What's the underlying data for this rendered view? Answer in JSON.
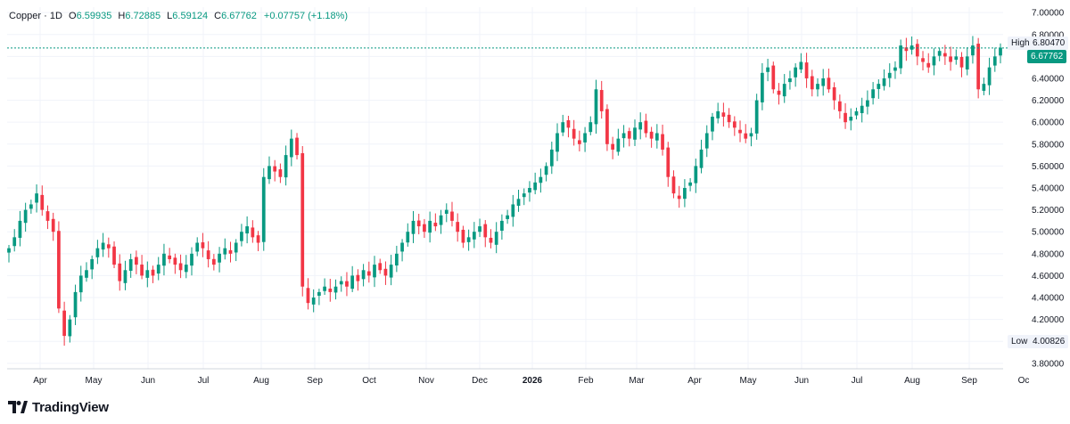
{
  "header": {
    "symbol": "Copper",
    "interval": "1D",
    "open_label": "O",
    "open": "6.59935",
    "high_label": "H",
    "high": "6.72885",
    "low_label": "L",
    "low": "6.59124",
    "close_label": "C",
    "close": "6.67762",
    "change": "+0.07757 (+1.18%)"
  },
  "markers": {
    "high_label": "High",
    "high_value": "6.80470",
    "low_label": "Low",
    "low_value": "4.00826",
    "last_value": "6.67762"
  },
  "branding": {
    "name": "TradingView"
  },
  "colors": {
    "up": "#089981",
    "down": "#f23645",
    "last_price": "#089981",
    "grid": "#f0f3fa"
  },
  "chart_data": {
    "type": "candlestick",
    "ylim": [
      3.75,
      7.05
    ],
    "y_ticks": [
      "7.00000",
      "6.80000",
      "6.60000",
      "6.40000",
      "6.20000",
      "6.00000",
      "5.80000",
      "5.60000",
      "5.40000",
      "5.20000",
      "5.00000",
      "4.80000",
      "4.60000",
      "4.40000",
      "4.20000",
      "4.00000",
      "3.80000"
    ],
    "x_labels": [
      "Apr",
      "May",
      "Jun",
      "Jul",
      "Aug",
      "Sep",
      "Oct",
      "Nov",
      "Dec",
      "2026",
      "Feb",
      "Mar",
      "Apr",
      "May",
      "Jun",
      "Jul",
      "Aug",
      "Sep",
      "Oc"
    ],
    "series": [
      {
        "values": [
          4.85,
          4.95,
          5.1,
          5.2,
          5.25,
          5.35,
          5.2,
          5.1,
          5.0,
          4.3,
          4.05,
          4.2,
          4.45,
          4.6,
          4.65,
          4.75,
          4.85,
          4.9,
          4.85,
          4.7,
          4.55,
          4.65,
          4.75,
          4.7,
          4.6,
          4.65,
          4.6,
          4.7,
          4.8,
          4.75,
          4.7,
          4.65,
          4.7,
          4.8,
          4.9,
          4.85,
          4.75,
          4.7,
          4.8,
          4.85,
          4.8,
          4.9,
          5.0,
          5.05,
          4.95,
          4.9,
          5.5,
          5.6,
          5.55,
          5.5,
          5.7,
          5.85,
          5.7,
          4.5,
          4.35,
          4.4,
          4.45,
          4.5,
          4.45,
          4.5,
          4.55,
          4.5,
          4.6,
          4.55,
          4.65,
          4.6,
          4.7,
          4.65,
          4.6,
          4.7,
          4.8,
          4.9,
          5.0,
          5.1,
          5.05,
          5.0,
          5.1,
          5.05,
          5.15,
          5.2,
          5.1,
          5.0,
          4.9,
          4.95,
          5.0,
          5.05,
          4.95,
          4.9,
          5.0,
          5.1,
          5.15,
          5.25,
          5.3,
          5.35,
          5.4,
          5.45,
          5.5,
          5.6,
          5.75,
          5.9,
          6.0,
          5.95,
          5.85,
          5.8,
          5.9,
          6.0,
          6.3,
          6.1,
          5.8,
          5.75,
          5.85,
          5.9,
          5.85,
          5.95,
          6.0,
          5.9,
          5.85,
          5.9,
          5.75,
          5.5,
          5.35,
          5.3,
          5.4,
          5.45,
          5.6,
          5.75,
          5.9,
          6.05,
          6.1,
          6.05,
          6.0,
          5.95,
          5.9,
          5.85,
          5.9,
          6.2,
          6.45,
          6.5,
          6.3,
          6.25,
          6.35,
          6.4,
          6.5,
          6.55,
          6.4,
          6.3,
          6.35,
          6.4,
          6.3,
          6.2,
          6.1,
          6.0,
          6.05,
          6.1,
          6.15,
          6.2,
          6.3,
          6.35,
          6.4,
          6.45,
          6.5,
          6.7,
          6.65,
          6.7,
          6.6,
          6.55,
          6.5,
          6.6,
          6.65,
          6.6,
          6.55,
          6.6,
          6.5,
          6.6,
          6.7,
          6.3,
          6.35,
          6.5,
          6.6,
          6.68
        ]
      }
    ]
  }
}
